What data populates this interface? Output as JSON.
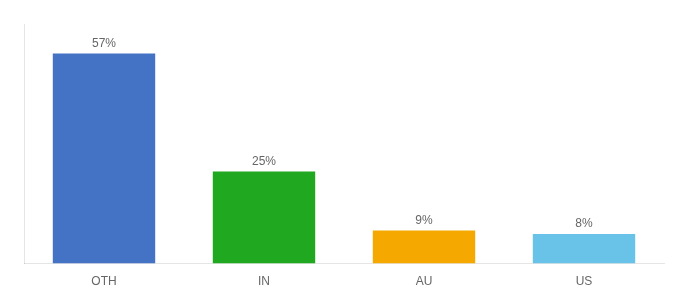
{
  "chart_data": {
    "type": "bar",
    "categories": [
      "OTH",
      "IN",
      "AU",
      "US"
    ],
    "values": [
      57,
      25,
      9,
      8
    ],
    "value_labels": [
      "57%",
      "25%",
      "9%",
      "8%"
    ],
    "colors": [
      "#4472C4",
      "#21A821",
      "#F5A800",
      "#69C3E8"
    ],
    "ylim": [
      0,
      65
    ],
    "grid": false,
    "data_labels": true,
    "tick_labels": "x"
  }
}
